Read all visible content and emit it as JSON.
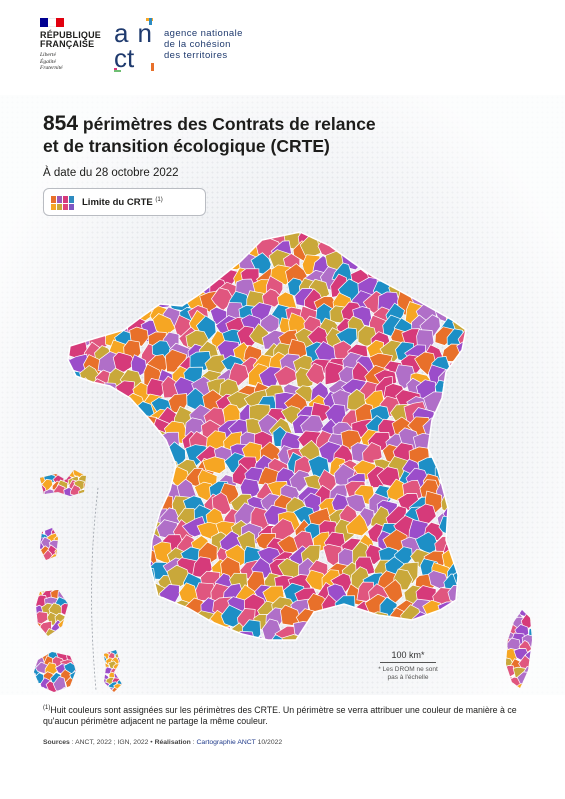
{
  "header": {
    "republique": [
      "RÉPUBLIQUE",
      "FRANÇAISE"
    ],
    "motto": [
      "Liberté",
      "Égalité",
      "Fraternité"
    ],
    "anct_logo_text": "anct",
    "anct_name": [
      "agence nationale",
      "de la cohésion",
      "des territoires"
    ]
  },
  "title": {
    "count": "854",
    "line1_rest": " périmètres des Contrats de relance",
    "line2": "et de transition écologique (CRTE)",
    "date": "À date du 28 octobre 2022"
  },
  "legend": {
    "label": "Limite du CRTE",
    "note_ref": "(1)",
    "swatch_colors": [
      "#e8702a",
      "#9b59b6",
      "#d63a7a",
      "#2e8bc0",
      "#f6a623",
      "#c9a83a",
      "#e0457b",
      "#7e57c2"
    ]
  },
  "palette": [
    "#f6a623",
    "#e8702a",
    "#9b4dca",
    "#1d8fc6",
    "#d63a7a",
    "#c9a83a",
    "#b06fc8",
    "#e0567f"
  ],
  "scale": {
    "label": "100 km*",
    "note": [
      "* Les DROM ne sont",
      "pas à l'échelle"
    ]
  },
  "footnote": {
    "ref": "(1)",
    "text": "Huit couleurs sont assignées sur les périmètres des CRTE. Un périmètre se verra attribuer une couleur de manière à ce qu'aucun périmètre adjacent ne partage la même couleur."
  },
  "sources": {
    "label": "Sources",
    "text": " : ANCT, 2022 ; IGN, 2022 • ",
    "real_label": "Réalisation",
    "real_sep": " : ",
    "real_text": "Cartographie ANCT",
    "real_date": " 10/2022"
  }
}
